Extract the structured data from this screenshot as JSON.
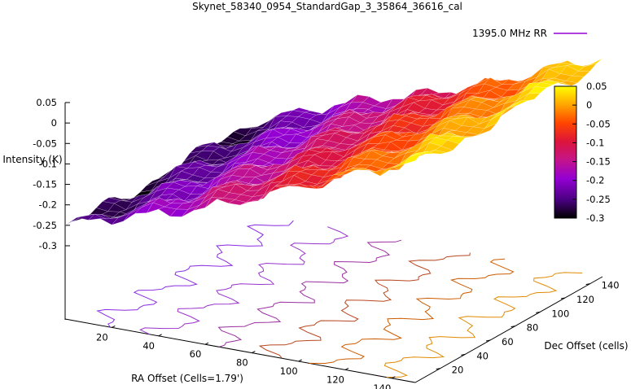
{
  "chart_data": {
    "type": "surface3d",
    "title": "Skynet_58340_0954_StandardGap_3_35864_36616_cal",
    "xlabel": "RA Offset (Cells=1.79')",
    "ylabel": "Dec Offset (cells)",
    "zlabel": "Intensity (K)",
    "legend": {
      "label": "1395.0 MHz RR",
      "placement": "top-right",
      "color": "#9400d3",
      "color2": "#ffa500"
    },
    "xlim": [
      0,
      150
    ],
    "ylim": [
      0,
      150
    ],
    "zlim": [
      -0.3,
      0.05
    ],
    "x_ticks": [
      "20",
      "40",
      "60",
      "80",
      "100",
      "120",
      "140"
    ],
    "y_ticks": [
      "20",
      "40",
      "60",
      "80",
      "100",
      "120",
      "140"
    ],
    "z_ticks": [
      "0.05",
      "0",
      "-0.05",
      "-0.1",
      "-0.15",
      "-0.2",
      "-0.25",
      "-0.3"
    ],
    "colorbar": {
      "min": -0.3,
      "max": 0.05,
      "ticks": [
        "0.05",
        "0",
        "-0.05",
        "-0.1",
        "-0.15",
        "-0.2",
        "-0.25",
        "-0.3"
      ],
      "palette": [
        "#000000",
        "#4b0082",
        "#9400d3",
        "#c71585",
        "#dc143c",
        "#ff4500",
        "#ffa500",
        "#ffff00"
      ]
    },
    "surface_model": {
      "description": "Intensity rises roughly linearly with RA offset",
      "z_at_x_min": -0.28,
      "z_at_x_max": 0.03
    },
    "contours": [
      {
        "level": -0.25,
        "color": "#8a2be2"
      },
      {
        "level": -0.2,
        "color": "#9932cc"
      },
      {
        "level": -0.15,
        "color": "#9b30a0"
      },
      {
        "level": -0.1,
        "color": "#b8461f"
      },
      {
        "level": -0.05,
        "color": "#cd5c00"
      },
      {
        "level": 0,
        "color": "#e08a00"
      }
    ]
  }
}
